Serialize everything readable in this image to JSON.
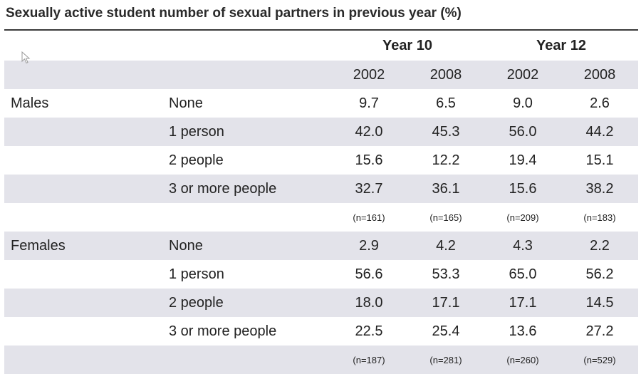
{
  "title": "Sexually active student number of sexual partners in previous year (%)",
  "header": {
    "groups": [
      "Year 10",
      "Year 12"
    ],
    "years": [
      "2002",
      "2008",
      "2002",
      "2008"
    ]
  },
  "sections": [
    {
      "group": "Males",
      "rows": [
        {
          "category": "None",
          "values": [
            "9.7",
            "6.5",
            "9.0",
            "2.6"
          ]
        },
        {
          "category": "1 person",
          "values": [
            "42.0",
            "45.3",
            "56.0",
            "44.2"
          ]
        },
        {
          "category": "2 people",
          "values": [
            "15.6",
            "12.2",
            "19.4",
            "15.1"
          ]
        },
        {
          "category": "3 or more people",
          "values": [
            "32.7",
            "36.1",
            "15.6",
            "38.2"
          ]
        }
      ],
      "n": [
        "(n=161)",
        "(n=165)",
        "(n=209)",
        "(n=183)"
      ]
    },
    {
      "group": "Females",
      "rows": [
        {
          "category": "None",
          "values": [
            "2.9",
            "4.2",
            "4.3",
            "2.2"
          ]
        },
        {
          "category": "1 person",
          "values": [
            "56.6",
            "53.3",
            "65.0",
            "56.2"
          ]
        },
        {
          "category": "2 people",
          "values": [
            "18.0",
            "17.1",
            "17.1",
            "14.5"
          ]
        },
        {
          "category": "3 or more people",
          "values": [
            "22.5",
            "25.4",
            "13.6",
            "27.2"
          ]
        }
      ],
      "n": [
        "(n=187)",
        "(n=281)",
        "(n=260)",
        "(n=529)"
      ]
    }
  ],
  "icons": {
    "pointer": "mouse-pointer-icon"
  }
}
